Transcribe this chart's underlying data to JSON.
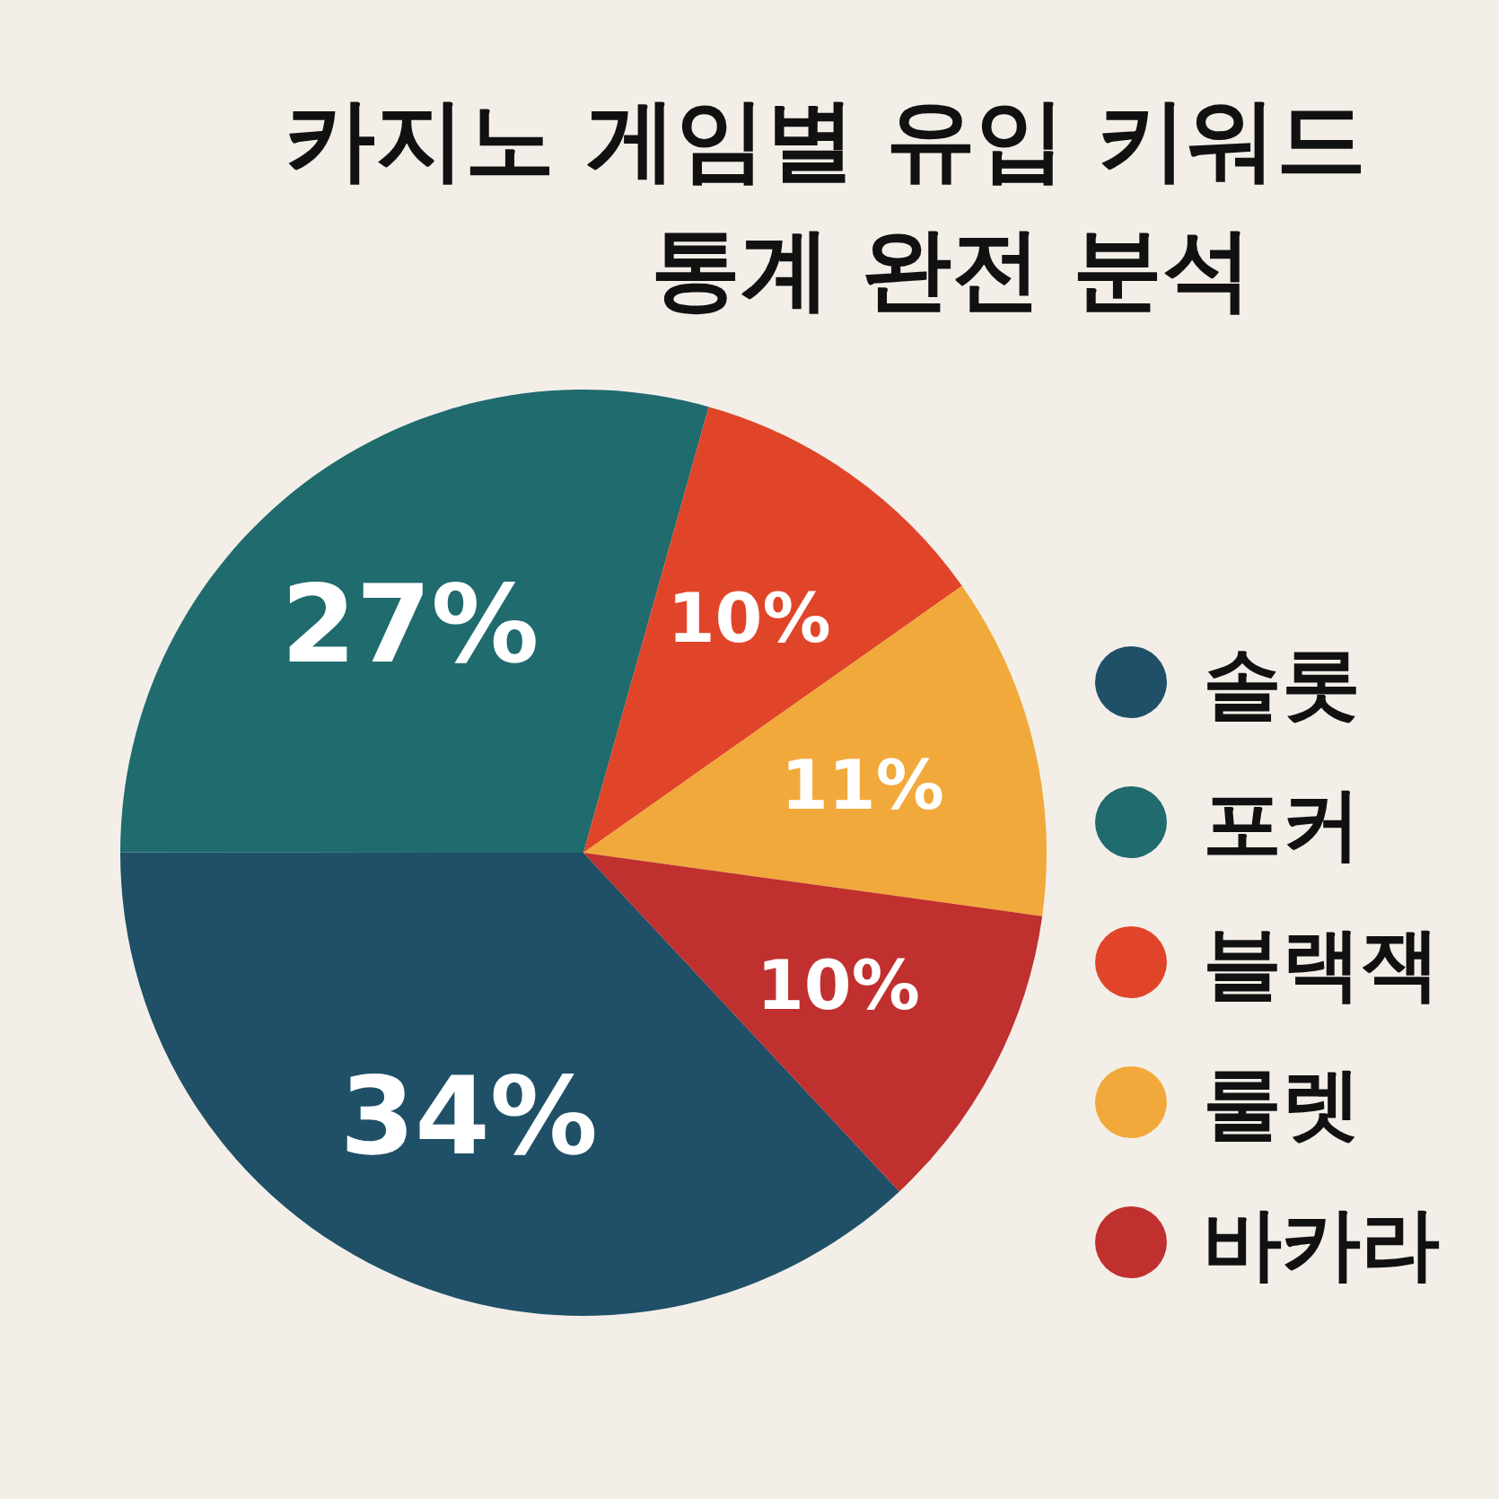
{
  "chart_data": {
    "type": "pie",
    "title": "카지노 게임별 유입 키워드 통계 완전 분석",
    "categories": [
      "솔롯",
      "포커",
      "블랙잭",
      "룰렛",
      "바카라"
    ],
    "values": [
      34,
      27,
      10,
      11,
      10
    ],
    "colors": [
      "#1f5068",
      "#1f6b6e",
      "#e0452a",
      "#f2a93b",
      "#c0302f"
    ],
    "value_labels": [
      "34%",
      "27%",
      "10%",
      "11%",
      "10%"
    ],
    "legend": "right"
  }
}
